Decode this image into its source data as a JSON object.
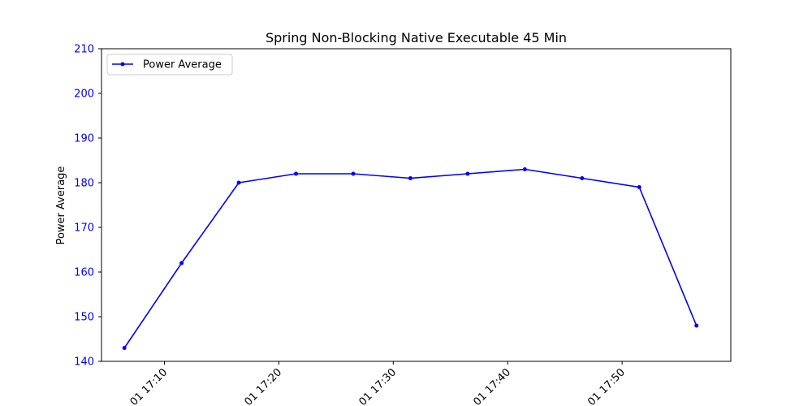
{
  "chart_data": {
    "type": "line",
    "title": "Spring Non-Blocking Native Executable 45 Min",
    "xlabel": "",
    "ylabel": "Power Average",
    "ylim": [
      140,
      210
    ],
    "y_ticks": [
      140,
      150,
      160,
      170,
      180,
      190,
      200,
      210
    ],
    "xlim": [
      "2024-07-01 17:04:30",
      "2024-07-01 17:59:30"
    ],
    "x_ticks": [
      {
        "x": "2024-07-01 17:10:00",
        "label": "01 17:10"
      },
      {
        "x": "2024-07-01 17:20:00",
        "label": "01 17:20"
      },
      {
        "x": "2024-07-01 17:30:00",
        "label": "01 17:30"
      },
      {
        "x": "2024-07-01 17:40:00",
        "label": "01 17:40"
      },
      {
        "x": "2024-07-01 17:50:00",
        "label": "01 17:50"
      }
    ],
    "x": [
      "2024-07-01 17:06:30",
      "2024-07-01 17:11:30",
      "2024-07-01 17:16:30",
      "2024-07-01 17:21:30",
      "2024-07-01 17:26:30",
      "2024-07-01 17:31:30",
      "2024-07-01 17:36:30",
      "2024-07-01 17:41:30",
      "2024-07-01 17:46:30",
      "2024-07-01 17:51:30",
      "2024-07-01 17:56:30"
    ],
    "series": [
      {
        "name": "Power Average",
        "color": "#0000ff",
        "values": [
          143,
          162,
          180,
          182,
          182,
          181,
          182,
          183,
          181,
          179,
          148
        ]
      }
    ],
    "legend_position": "top-left",
    "grid": false,
    "axis_color": "#0000ff"
  }
}
